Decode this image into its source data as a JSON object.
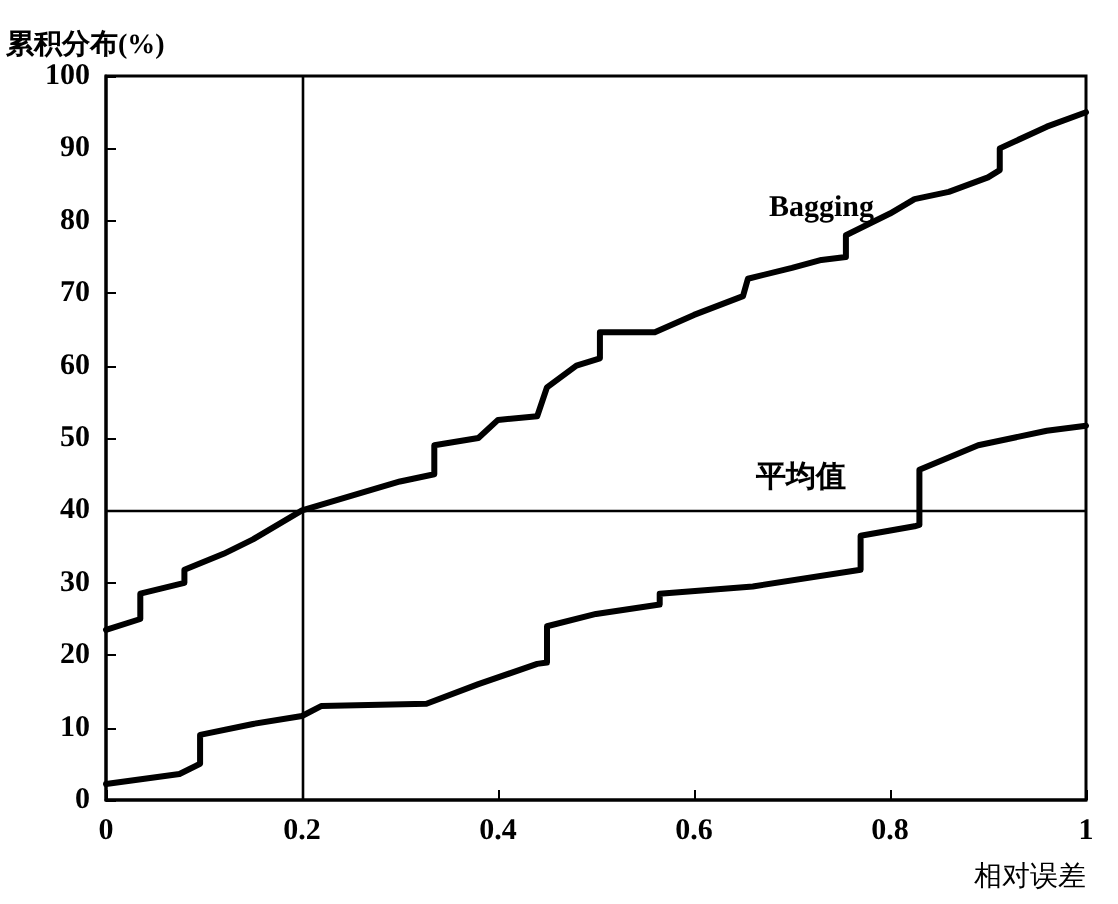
{
  "chart_data": {
    "type": "line",
    "xlabel": "相对误差",
    "ylabel": "累积分布(%)",
    "xlim": [
      0,
      1
    ],
    "xticks": [
      0,
      0.2,
      0.4,
      0.6,
      0.8,
      1
    ],
    "ylim": [
      0,
      100
    ],
    "yticks": [
      0,
      10,
      20,
      30,
      40,
      50,
      60,
      70,
      80,
      90,
      100
    ],
    "grid": false,
    "legend": false,
    "marker": "none",
    "line_style": "solid",
    "series": [
      {
        "name": "Bagging",
        "color": "#000000",
        "x": [
          0,
          0.035,
          0.035,
          0.08,
          0.08,
          0.12,
          0.15,
          0.2,
          0.25,
          0.3,
          0.335,
          0.335,
          0.38,
          0.4,
          0.44,
          0.45,
          0.48,
          0.504,
          0.504,
          0.56,
          0.6,
          0.65,
          0.655,
          0.7,
          0.73,
          0.755,
          0.755,
          0.8,
          0.825,
          0.86,
          0.9,
          0.912,
          0.912,
          0.96,
          1
        ],
        "values": [
          23.5,
          25,
          28.5,
          30,
          31.8,
          34,
          36,
          40,
          42,
          44,
          45,
          49,
          50,
          52.5,
          53,
          57,
          60,
          61,
          64.6,
          64.6,
          67,
          69.6,
          72,
          73.5,
          74.6,
          75,
          78,
          81,
          83,
          84,
          86,
          87,
          90,
          93,
          95
        ]
      },
      {
        "name": "平均值",
        "color": "#000000",
        "x": [
          0,
          0.075,
          0.096,
          0.096,
          0.15,
          0.2,
          0.22,
          0.327,
          0.38,
          0.44,
          0.45,
          0.45,
          0.5,
          0.565,
          0.565,
          0.66,
          0.77,
          0.77,
          0.825,
          0.83,
          0.83,
          0.89,
          0.96,
          1
        ],
        "values": [
          2.2,
          3.6,
          5,
          9,
          10.5,
          11.6,
          13,
          13.3,
          16,
          18.8,
          19,
          24,
          25.7,
          27,
          28.5,
          29.5,
          31.8,
          36.5,
          37.8,
          38,
          45.6,
          49,
          51,
          51.7
        ]
      }
    ],
    "ref_lines": [
      {
        "axis": "x",
        "value": 0.2,
        "color": "#000000",
        "line_style": "solid"
      },
      {
        "axis": "y",
        "value": 40,
        "color": "#000000",
        "line_style": "solid"
      }
    ]
  }
}
